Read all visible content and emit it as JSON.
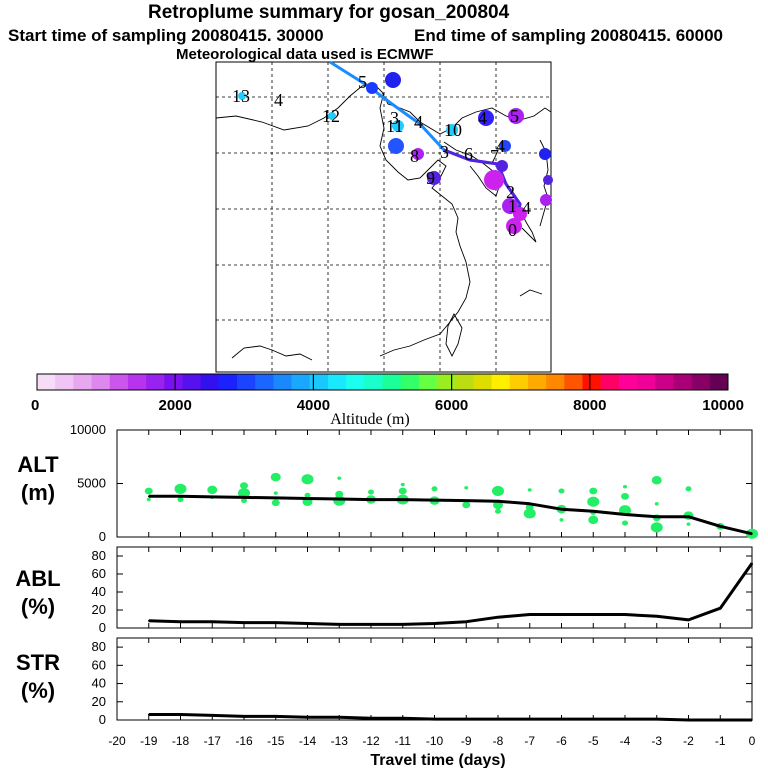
{
  "header": {
    "title": "Retroplume summary for gosan_200804",
    "start": "Start time of sampling 20080415. 30000",
    "end": "End time of sampling 20080415. 60000",
    "met": "Meteorological data used is ECMWF"
  },
  "colors": {
    "trajectory": "#1a8cff",
    "trajectory_late": "#5522dd",
    "points": "#22ee66",
    "line": "#000000"
  },
  "map": {
    "labels": [
      {
        "text": "13",
        "color": "#22ccff"
      },
      {
        "text": "4",
        "color": "#22ee66"
      },
      {
        "text": "12",
        "color": "#22ccff"
      },
      {
        "text": "5",
        "color": "#1a3cff"
      },
      {
        "text": "3",
        "color": "#22ccff"
      },
      {
        "text": "11",
        "color": "#22ccff"
      },
      {
        "text": "4",
        "color": "#3322ff"
      },
      {
        "text": "10",
        "color": "#22ccff"
      },
      {
        "text": "4",
        "color": "#5522dd"
      },
      {
        "text": "5",
        "color": "#aa22ee"
      },
      {
        "text": "4",
        "color": "#2255ff"
      },
      {
        "text": "8",
        "color": "#aa22ee"
      },
      {
        "text": "9",
        "color": "#5522dd"
      },
      {
        "text": "3",
        "color": "#5522dd"
      },
      {
        "text": "7",
        "color": "#aa22ee"
      },
      {
        "text": "6",
        "color": "#5522dd"
      },
      {
        "text": "2",
        "color": "#cc22ee"
      },
      {
        "text": "1",
        "color": "#aa22ee"
      },
      {
        "text": "4",
        "color": "#aa22ee"
      },
      {
        "text": "0",
        "color": "#cc22ee"
      }
    ]
  },
  "colorbar": {
    "label": "Altitude (m)",
    "ticks": [
      "0",
      "2000",
      "4000",
      "6000",
      "8000",
      "10000"
    ],
    "colors": [
      "#f5dcf7",
      "#f0c4f4",
      "#e8a8f0",
      "#dd88ee",
      "#cc55ee",
      "#b833ee",
      "#9922ee",
      "#7a11ee",
      "#5511ee",
      "#3311ee",
      "#1a22ff",
      "#1a44ff",
      "#1a66ff",
      "#1a88ff",
      "#1aa8ff",
      "#1ac8ff",
      "#1ae8ff",
      "#1affee",
      "#1affcc",
      "#1aff99",
      "#33ff66",
      "#66ff44",
      "#99ee22",
      "#bbdd11",
      "#dddd00",
      "#ffee00",
      "#ffcc00",
      "#ffaa00",
      "#ff8800",
      "#ff5500",
      "#ff1100",
      "#ff0066",
      "#ff0099",
      "#ee0099",
      "#cc0088",
      "#aa0077",
      "#880066",
      "#660055"
    ]
  },
  "chart_data": [
    {
      "type": "line",
      "name": "ALT",
      "ylabel": "ALT\n(m)",
      "ylabel_lines": [
        "ALT",
        "(m)"
      ],
      "ylim": [
        0,
        10000
      ],
      "yticks": [
        "10000",
        "5000",
        "0"
      ],
      "ytick_values": [
        10000,
        5000,
        0
      ],
      "x": [
        -19,
        -18,
        -17,
        -16,
        -15,
        -14,
        -13,
        -12,
        -11,
        -10,
        -9,
        -8,
        -7,
        -6,
        -5,
        -4,
        -3,
        -2,
        -1,
        0
      ],
      "values": [
        3800,
        3800,
        3750,
        3700,
        3650,
        3600,
        3550,
        3500,
        3500,
        3450,
        3400,
        3350,
        3100,
        2600,
        2400,
        2100,
        1900,
        1900,
        1000,
        300
      ],
      "scatter": [
        {
          "x": -19,
          "y": 3500
        },
        {
          "x": -19,
          "y": 4300
        },
        {
          "x": -18,
          "y": 4500
        },
        {
          "x": -18,
          "y": 3500
        },
        {
          "x": -17,
          "y": 4400
        },
        {
          "x": -17,
          "y": 3700
        },
        {
          "x": -16,
          "y": 4800
        },
        {
          "x": -16,
          "y": 4100
        },
        {
          "x": -16,
          "y": 3400
        },
        {
          "x": -15,
          "y": 5600
        },
        {
          "x": -15,
          "y": 4100
        },
        {
          "x": -15,
          "y": 3200
        },
        {
          "x": -14,
          "y": 5400
        },
        {
          "x": -14,
          "y": 3900
        },
        {
          "x": -14,
          "y": 3300
        },
        {
          "x": -13,
          "y": 5500
        },
        {
          "x": -13,
          "y": 4000
        },
        {
          "x": -13,
          "y": 3400
        },
        {
          "x": -12,
          "y": 4200
        },
        {
          "x": -12,
          "y": 3500
        },
        {
          "x": -11,
          "y": 4900
        },
        {
          "x": -11,
          "y": 4300
        },
        {
          "x": -11,
          "y": 3500
        },
        {
          "x": -10,
          "y": 4500
        },
        {
          "x": -10,
          "y": 3400
        },
        {
          "x": -9,
          "y": 4600
        },
        {
          "x": -9,
          "y": 3000
        },
        {
          "x": -8,
          "y": 4300
        },
        {
          "x": -8,
          "y": 2400
        },
        {
          "x": -8,
          "y": 3000
        },
        {
          "x": -7,
          "y": 4400
        },
        {
          "x": -7,
          "y": 2800
        },
        {
          "x": -7,
          "y": 2200
        },
        {
          "x": -6,
          "y": 4300
        },
        {
          "x": -6,
          "y": 2600
        },
        {
          "x": -6,
          "y": 1600
        },
        {
          "x": -5,
          "y": 4300
        },
        {
          "x": -5,
          "y": 3300
        },
        {
          "x": -5,
          "y": 2300
        },
        {
          "x": -5,
          "y": 1600
        },
        {
          "x": -4,
          "y": 4700
        },
        {
          "x": -4,
          "y": 3800
        },
        {
          "x": -4,
          "y": 2500
        },
        {
          "x": -4,
          "y": 1300
        },
        {
          "x": -3,
          "y": 5300
        },
        {
          "x": -3,
          "y": 3100
        },
        {
          "x": -3,
          "y": 1800
        },
        {
          "x": -3,
          "y": 900
        },
        {
          "x": -2,
          "y": 4500
        },
        {
          "x": -2,
          "y": 2000
        },
        {
          "x": -2,
          "y": 1200
        },
        {
          "x": -1,
          "y": 1000
        },
        {
          "x": 0,
          "y": 300
        }
      ]
    },
    {
      "type": "line",
      "name": "ABL",
      "ylabel_lines": [
        "ABL",
        "(%)"
      ],
      "ylim": [
        0,
        90
      ],
      "yticks": [
        "80",
        "60",
        "40",
        "20",
        "0"
      ],
      "ytick_values": [
        80,
        60,
        40,
        20,
        0
      ],
      "x": [
        -19,
        -18,
        -17,
        -16,
        -15,
        -14,
        -13,
        -12,
        -11,
        -10,
        -9,
        -8,
        -7,
        -6,
        -5,
        -4,
        -3,
        -2,
        -1,
        0
      ],
      "values": [
        8,
        7,
        7,
        6,
        6,
        5,
        4,
        4,
        4,
        5,
        7,
        12,
        15,
        15,
        15,
        15,
        13,
        9,
        22,
        72
      ]
    },
    {
      "type": "line",
      "name": "STR",
      "ylabel_lines": [
        "STR",
        "(%)"
      ],
      "ylim": [
        0,
        90
      ],
      "yticks": [
        "80",
        "60",
        "40",
        "20",
        "0"
      ],
      "ytick_values": [
        80,
        60,
        40,
        20,
        0
      ],
      "x": [
        -19,
        -18,
        -17,
        -16,
        -15,
        -14,
        -13,
        -12,
        -11,
        -10,
        -9,
        -8,
        -7,
        -6,
        -5,
        -4,
        -3,
        -2,
        -1,
        0
      ],
      "values": [
        6,
        6,
        5,
        4,
        4,
        3,
        3,
        2,
        2,
        1,
        1,
        1,
        1,
        1,
        1,
        1,
        1,
        0,
        0,
        0
      ]
    }
  ],
  "xaxis": {
    "label": "Travel time (days)",
    "ticks": [
      "-20",
      "-19",
      "-18",
      "-17",
      "-16",
      "-15",
      "-14",
      "-13",
      "-12",
      "-11",
      "-10",
      "-9",
      "-8",
      "-7",
      "-6",
      "-5",
      "-4",
      "-3",
      "-2",
      "-1",
      "0"
    ],
    "min": -20,
    "max": 0
  }
}
